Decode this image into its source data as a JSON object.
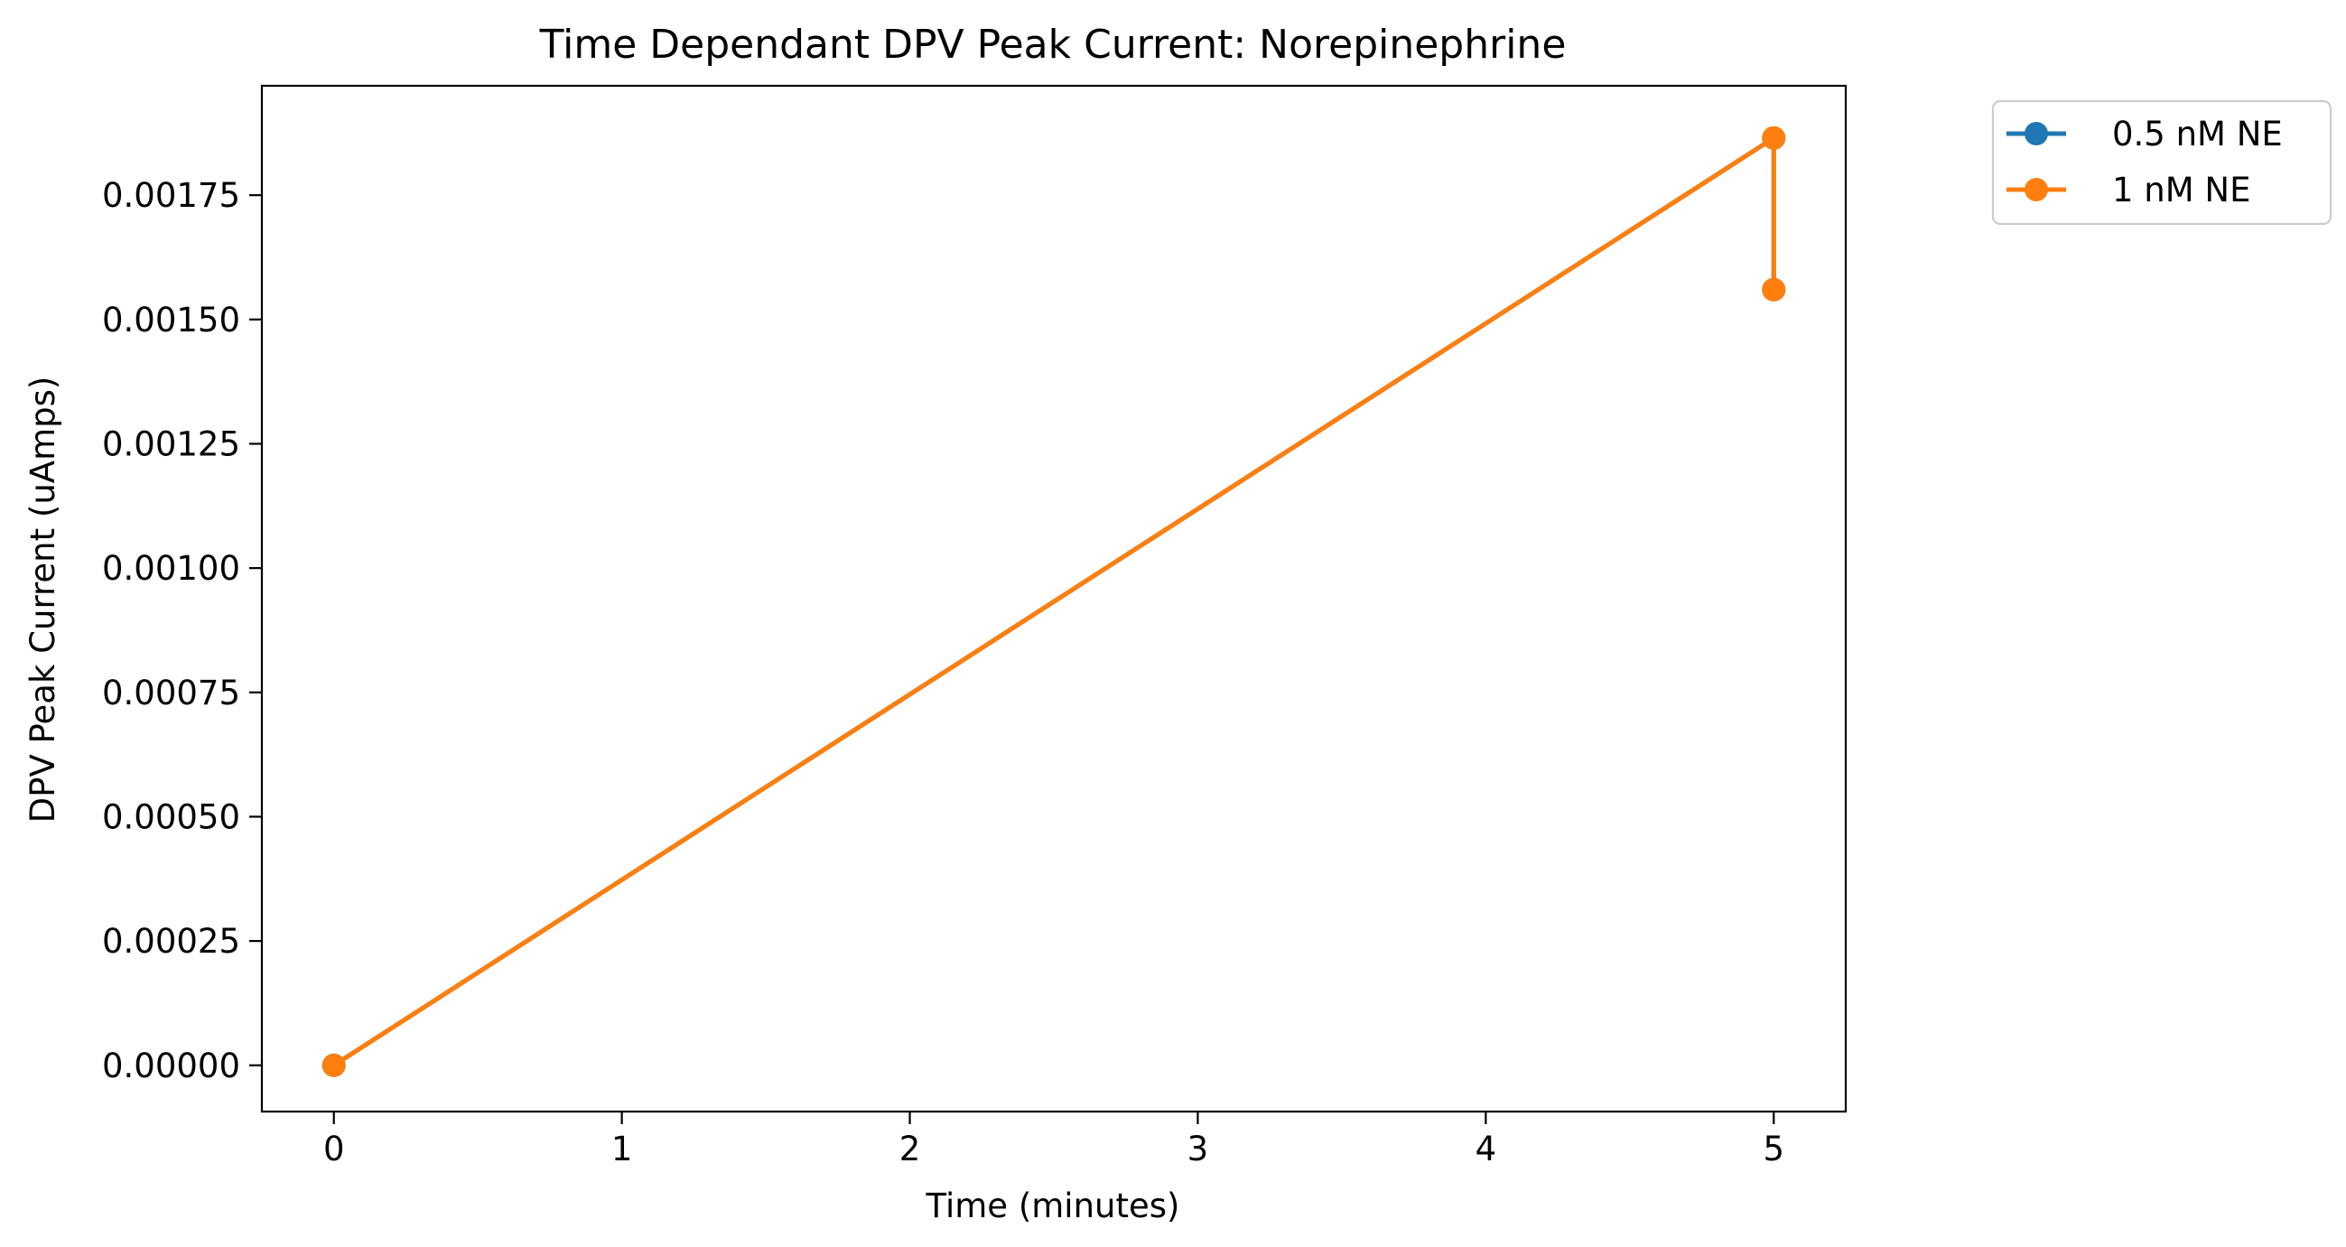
{
  "chart_data": {
    "type": "line",
    "title": "Time Dependant DPV Peak Current: Norepinephrine",
    "xlabel": "Time (minutes)",
    "ylabel": "DPV Peak Current (uAmps)",
    "xlim": [
      -0.25,
      5.25
    ],
    "ylim": [
      -9.3e-05,
      0.00197
    ],
    "x_ticks": [
      0,
      1,
      2,
      3,
      4,
      5
    ],
    "x_tick_labels": [
      "0",
      "1",
      "2",
      "3",
      "4",
      "5"
    ],
    "y_ticks": [
      0,
      0.00025,
      0.0005,
      0.00075,
      0.001,
      0.00125,
      0.0015,
      0.00175
    ],
    "y_tick_labels": [
      "0.00000",
      "0.00025",
      "0.00050",
      "0.00075",
      "0.00100",
      "0.00125",
      "0.00150",
      "0.00175"
    ],
    "grid": false,
    "legend_position": "outside-upper-right",
    "series": [
      {
        "name": "0.5 nM NE",
        "color": "#1f77b4",
        "marker": "circle",
        "x": [
          0,
          5,
          5
        ],
        "y": [
          0,
          0.001865,
          0.00156
        ]
      },
      {
        "name": "1 nM NE",
        "color": "#ff7f0e",
        "marker": "circle",
        "x": [
          0,
          5,
          5
        ],
        "y": [
          0,
          0.001865,
          0.00156
        ]
      }
    ]
  }
}
